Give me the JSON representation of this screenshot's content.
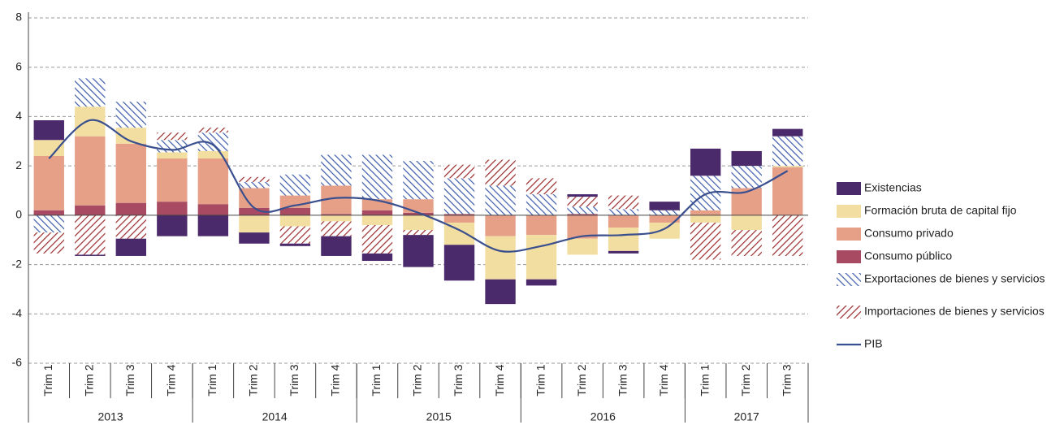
{
  "chart_data": {
    "type": "bar",
    "stacked": true,
    "categories": [
      "Trim 1",
      "Trim 2",
      "Trim 3",
      "Trim 4",
      "Trim 1",
      "Trim 2",
      "Trim 3",
      "Trim 4",
      "Trim 1",
      "Trim 2",
      "Trim 3",
      "Trim 4",
      "Trim 1",
      "Trim 2",
      "Trim 3",
      "Trim 4",
      "Trim 1",
      "Trim 2",
      "Trim 3"
    ],
    "category_groups": [
      "2013",
      "2014",
      "2015",
      "2016",
      "2017"
    ],
    "ylim": [
      -6,
      8
    ],
    "yticks": [
      -6,
      -4,
      -2,
      0,
      2,
      4,
      6,
      8
    ],
    "grid": true,
    "legend": "right",
    "series": [
      {
        "name": "Existencias",
        "color": "#4b2a6c",
        "values": [
          0.8,
          -0.05,
          -0.7,
          -0.85,
          -0.85,
          -0.45,
          -0.1,
          -0.8,
          -0.3,
          -1.3,
          -1.45,
          -1.0,
          -0.25,
          0.1,
          -0.1,
          0.35,
          1.1,
          0.6,
          0.3
        ]
      },
      {
        "name": "Formación bruta de capital fijo",
        "color": "#f3dea2",
        "values": [
          0.65,
          1.2,
          0.65,
          0.25,
          0.3,
          -0.7,
          -0.45,
          -0.25,
          -0.4,
          -0.6,
          -0.9,
          -1.75,
          -1.8,
          -0.65,
          -0.95,
          -0.65,
          -0.3,
          -0.6,
          0.05
        ]
      },
      {
        "name": "Consumo privado",
        "color": "#e6a088",
        "values": [
          2.2,
          2.8,
          2.4,
          1.75,
          1.85,
          0.8,
          0.5,
          1.15,
          0.45,
          0.55,
          -0.3,
          -0.85,
          -0.8,
          -0.95,
          -0.5,
          -0.3,
          0.2,
          1.1,
          1.95
        ]
      },
      {
        "name": "Consumo público",
        "color": "#a84a62",
        "values": [
          0.2,
          0.4,
          0.5,
          0.55,
          0.45,
          0.3,
          0.3,
          0.05,
          0.2,
          0.1,
          0.05,
          0,
          0,
          0.05,
          0,
          0,
          0,
          0,
          0
        ]
      },
      {
        "name": "Exportaciones de bienes y servicios",
        "color": "#3b5aa8",
        "hatch": "back",
        "values": [
          -0.7,
          1.15,
          1.05,
          0.5,
          0.75,
          0.25,
          0.85,
          1.25,
          1.8,
          1.55,
          1.45,
          1.2,
          0.85,
          0.3,
          0.25,
          0.2,
          1.4,
          0.9,
          1.2
        ]
      },
      {
        "name": "Importaciones de bienes y servicios",
        "color": "#9a2a2a",
        "hatch": "forward",
        "values": [
          -0.85,
          -1.6,
          -0.95,
          0.3,
          0.2,
          0.2,
          -0.7,
          -0.6,
          -1.15,
          -0.2,
          0.55,
          1.05,
          0.65,
          0.4,
          0.55,
          0,
          -1.5,
          -1.05,
          -1.65
        ]
      },
      {
        "name": "PIB",
        "color": "#3a4f8e",
        "type": "line",
        "values": [
          2.3,
          3.85,
          3.0,
          2.65,
          2.85,
          0.3,
          0.4,
          0.7,
          0.6,
          0.1,
          -0.6,
          -1.45,
          -1.25,
          -0.85,
          -0.8,
          -0.55,
          0.85,
          0.95,
          1.8
        ]
      }
    ]
  }
}
